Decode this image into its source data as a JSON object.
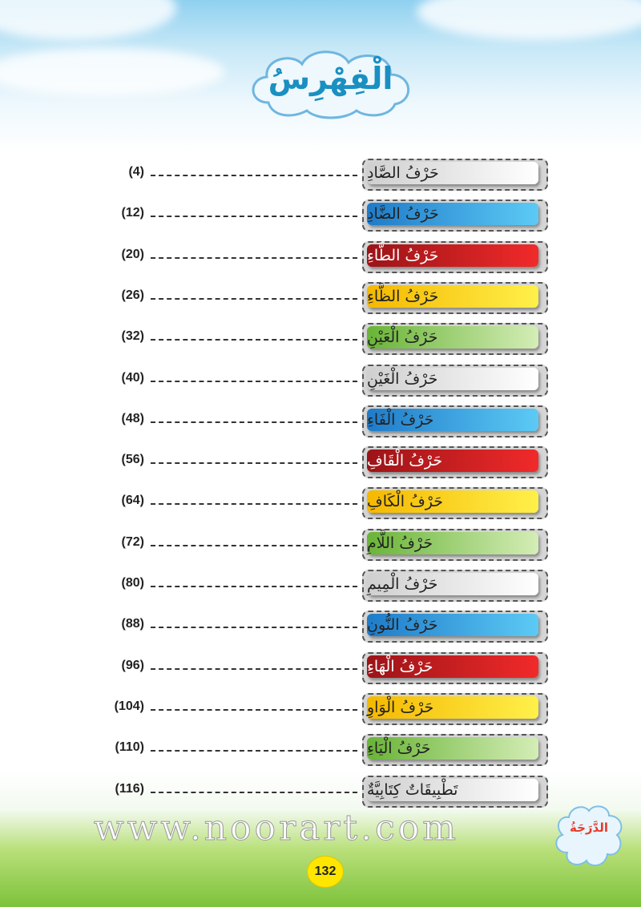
{
  "title": "الْفِهْرِسُ",
  "entries": [
    {
      "label": "حَرْفُ الصَّادِ",
      "page": "(4)",
      "color": "white"
    },
    {
      "label": "حَرْفُ الضَّادِ",
      "page": "(12)",
      "color": "blue"
    },
    {
      "label": "حَرْفُ الطَّاءِ",
      "page": "(20)",
      "color": "red"
    },
    {
      "label": "حَرْفُ الظَّاءِ",
      "page": "(26)",
      "color": "yellow"
    },
    {
      "label": "حَرْفُ الْعَيْنِ",
      "page": "(32)",
      "color": "green"
    },
    {
      "label": "حَرْفُ الْغَيْنِ",
      "page": "(40)",
      "color": "white"
    },
    {
      "label": "حَرْفُ الْفَاءِ",
      "page": "(48)",
      "color": "blue"
    },
    {
      "label": "حَرْفُ الْقَافِ",
      "page": "(56)",
      "color": "red"
    },
    {
      "label": "حَرْفُ الْكَافِ",
      "page": "(64)",
      "color": "yellow"
    },
    {
      "label": "حَرْفُ اللَّامِ",
      "page": "(72)",
      "color": "green"
    },
    {
      "label": "حَرْفُ الْمِيمِ",
      "page": "(80)",
      "color": "white"
    },
    {
      "label": "حَرْفُ النُّونِ",
      "page": "(88)",
      "color": "blue"
    },
    {
      "label": "حَرْفُ الْهَاءِ",
      "page": "(96)",
      "color": "red"
    },
    {
      "label": "حَرْفُ الْوَاوِ",
      "page": "(104)",
      "color": "yellow"
    },
    {
      "label": "حَرْفُ الْيَاءِ",
      "page": "(110)",
      "color": "green"
    },
    {
      "label": "تَطْبِيقَاتٌ كِتَابِيَّةٌ",
      "page": "(116)",
      "color": "white"
    }
  ],
  "grade_label": "الدَّرَجَةُ",
  "page_number": "132",
  "watermark": "www.noorart.com",
  "colors": {
    "title": "#1a8fc2",
    "grade": "#e53a2c",
    "page_badge": "#ffe600"
  }
}
